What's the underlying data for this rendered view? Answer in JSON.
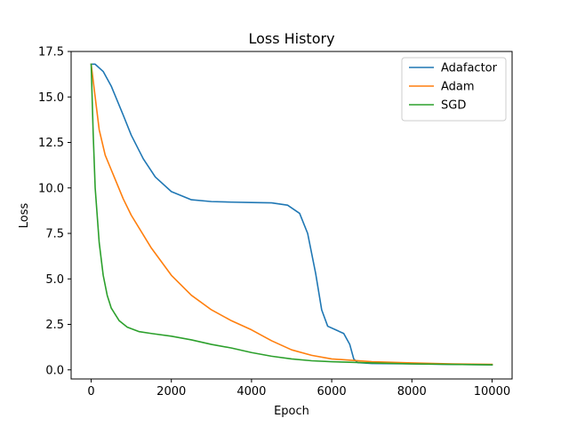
{
  "chart_data": {
    "type": "line",
    "title": "Loss History",
    "xlabel": "Epoch",
    "ylabel": "Loss",
    "xlim": [
      -500,
      10500
    ],
    "ylim": [
      -0.5,
      17.5
    ],
    "xticks": [
      0,
      2000,
      4000,
      6000,
      8000,
      10000
    ],
    "xtick_labels": [
      "0",
      "2000",
      "4000",
      "6000",
      "8000",
      "10000"
    ],
    "yticks": [
      0.0,
      2.5,
      5.0,
      7.5,
      10.0,
      12.5,
      15.0,
      17.5
    ],
    "ytick_labels": [
      "0.0",
      "2.5",
      "5.0",
      "7.5",
      "10.0",
      "12.5",
      "15.0",
      "17.5"
    ],
    "grid": false,
    "legend_position": "top-right",
    "series": [
      {
        "name": "Adafactor",
        "color": "#1f77b4",
        "points": [
          [
            0,
            16.8
          ],
          [
            100,
            16.8
          ],
          [
            300,
            16.4
          ],
          [
            500,
            15.6
          ],
          [
            800,
            14.0
          ],
          [
            1000,
            12.9
          ],
          [
            1300,
            11.6
          ],
          [
            1600,
            10.6
          ],
          [
            2000,
            9.8
          ],
          [
            2500,
            9.35
          ],
          [
            3000,
            9.25
          ],
          [
            3500,
            9.22
          ],
          [
            4000,
            9.2
          ],
          [
            4500,
            9.18
          ],
          [
            4900,
            9.05
          ],
          [
            5200,
            8.6
          ],
          [
            5400,
            7.5
          ],
          [
            5600,
            5.3
          ],
          [
            5750,
            3.3
          ],
          [
            5900,
            2.4
          ],
          [
            6100,
            2.2
          ],
          [
            6300,
            2.0
          ],
          [
            6450,
            1.4
          ],
          [
            6550,
            0.6
          ],
          [
            6650,
            0.4
          ],
          [
            7000,
            0.35
          ],
          [
            8000,
            0.33
          ],
          [
            9000,
            0.3
          ],
          [
            10000,
            0.28
          ]
        ]
      },
      {
        "name": "Adam",
        "color": "#ff7f0e",
        "points": [
          [
            0,
            16.8
          ],
          [
            100,
            15.0
          ],
          [
            200,
            13.2
          ],
          [
            350,
            11.8
          ],
          [
            500,
            11.0
          ],
          [
            800,
            9.4
          ],
          [
            1000,
            8.5
          ],
          [
            1500,
            6.7
          ],
          [
            2000,
            5.2
          ],
          [
            2500,
            4.1
          ],
          [
            3000,
            3.3
          ],
          [
            3500,
            2.7
          ],
          [
            4000,
            2.2
          ],
          [
            4500,
            1.6
          ],
          [
            5000,
            1.1
          ],
          [
            5500,
            0.8
          ],
          [
            6000,
            0.6
          ],
          [
            7000,
            0.45
          ],
          [
            8000,
            0.38
          ],
          [
            9000,
            0.33
          ],
          [
            10000,
            0.3
          ]
        ]
      },
      {
        "name": "SGD",
        "color": "#2ca02c",
        "points": [
          [
            0,
            16.8
          ],
          [
            50,
            13.0
          ],
          [
            100,
            10.0
          ],
          [
            200,
            7.0
          ],
          [
            300,
            5.2
          ],
          [
            400,
            4.1
          ],
          [
            500,
            3.4
          ],
          [
            700,
            2.7
          ],
          [
            900,
            2.35
          ],
          [
            1200,
            2.1
          ],
          [
            1500,
            2.0
          ],
          [
            2000,
            1.85
          ],
          [
            2500,
            1.65
          ],
          [
            3000,
            1.4
          ],
          [
            3500,
            1.2
          ],
          [
            4000,
            0.95
          ],
          [
            4500,
            0.75
          ],
          [
            5000,
            0.6
          ],
          [
            5500,
            0.5
          ],
          [
            6000,
            0.45
          ],
          [
            7000,
            0.38
          ],
          [
            8000,
            0.33
          ],
          [
            9000,
            0.3
          ],
          [
            10000,
            0.28
          ]
        ]
      }
    ]
  }
}
